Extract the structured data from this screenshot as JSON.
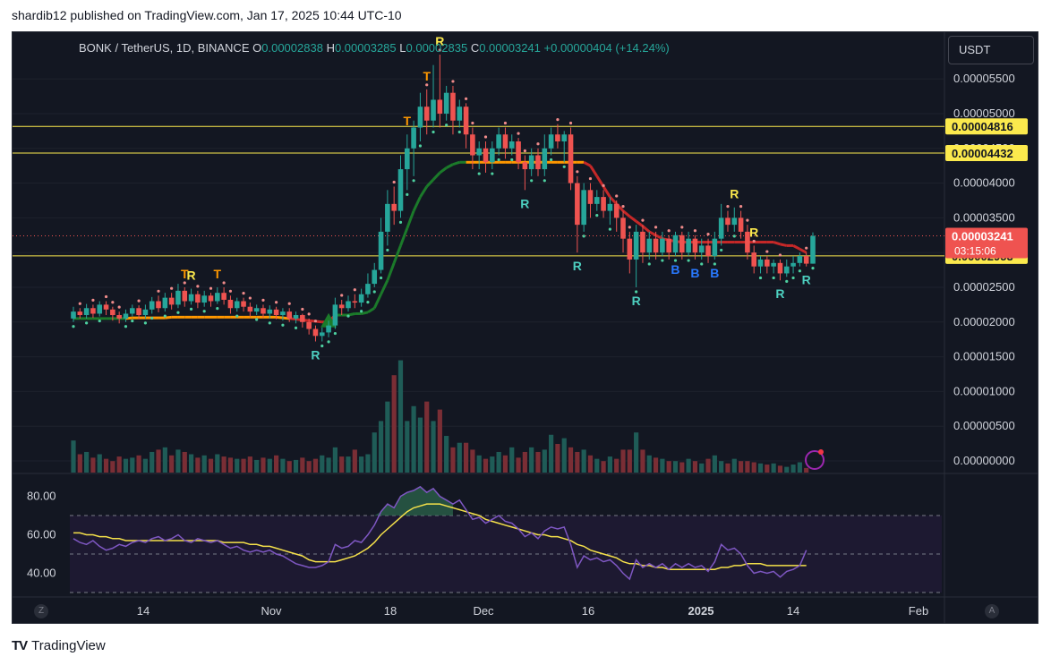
{
  "header": {
    "published": "shardib12 published on TradingView.com, Jan 17, 2025 10:44 UTC-10"
  },
  "ohlc": {
    "symbol": "BONK / TetherUS, 1D, BINANCE",
    "o_label": "O",
    "o": "0.00002838",
    "h_label": "H",
    "h": "0.00003285",
    "l_label": "L",
    "l": "0.00002835",
    "c_label": "C",
    "c": "0.00003241",
    "change": "+0.00000404 (+14.24%)"
  },
  "toolbar": {
    "currency": "USDT",
    "left_corner": "Z",
    "right_corner": "A"
  },
  "footer": {
    "brand": "TradingView",
    "brand_mark": "TV"
  },
  "colors": {
    "background": "#131722",
    "up": "#26a69a",
    "down": "#ef5350",
    "grid": "#1e222d",
    "level": "#fbe94d",
    "rsi": "#7e57c2",
    "rsi_ma": "#f5e14a",
    "trail_up": "#1b7a2a",
    "trail_down": "#c62828",
    "trail_flat": "#ff9800"
  },
  "chart_data": [
    {
      "type": "candlestick",
      "title": "BONK / TetherUS, 1D, BINANCE",
      "y_axis_ticks": [
        "0.00005500",
        "0.00005000",
        "0.00004500",
        "0.00004000",
        "0.00003500",
        "0.00003000",
        "0.00002500",
        "0.00002000",
        "0.00001500",
        "0.00001000",
        "0.00000500",
        "0.00000000"
      ],
      "x_axis_ticks": [
        "14",
        "Nov",
        "18",
        "Dec",
        "16",
        "2025",
        "14",
        "Feb"
      ],
      "ylim": [
        0.0,
        5.85e-05
      ],
      "horizontal_levels": [
        {
          "label": "0.00004816",
          "value": 4.816e-05
        },
        {
          "label": "0.00004432",
          "value": 4.432e-05
        },
        {
          "label": "0.00002953",
          "value": 2.953e-05
        }
      ],
      "last_price": {
        "label": "0.00003241",
        "countdown": "03:15:06",
        "value": 3.241e-05
      },
      "candles": [
        [
          2.05,
          2.15,
          2.22,
          2.0
        ],
        [
          2.15,
          2.1,
          2.2,
          2.05
        ],
        [
          2.1,
          2.2,
          2.26,
          2.05
        ],
        [
          2.2,
          2.12,
          2.25,
          2.06
        ],
        [
          2.12,
          2.25,
          2.3,
          2.08
        ],
        [
          2.25,
          2.18,
          2.3,
          2.1
        ],
        [
          2.18,
          2.1,
          2.22,
          2.02
        ],
        [
          2.1,
          2.05,
          2.15,
          1.98
        ],
        [
          2.05,
          2.12,
          2.18,
          2.0
        ],
        [
          2.12,
          2.2,
          2.25,
          2.08
        ],
        [
          2.2,
          2.1,
          2.24,
          2.04
        ],
        [
          2.1,
          2.18,
          2.25,
          2.05
        ],
        [
          2.18,
          2.3,
          2.36,
          2.12
        ],
        [
          2.3,
          2.2,
          2.38,
          2.14
        ],
        [
          2.2,
          2.35,
          2.42,
          2.15
        ],
        [
          2.35,
          2.25,
          2.42,
          2.18
        ],
        [
          2.25,
          2.45,
          2.55,
          2.2
        ],
        [
          2.45,
          2.3,
          2.5,
          2.22
        ],
        [
          2.3,
          2.4,
          2.48,
          2.25
        ],
        [
          2.4,
          2.28,
          2.45,
          2.2
        ],
        [
          2.28,
          2.38,
          2.45,
          2.22
        ],
        [
          2.38,
          2.3,
          2.42,
          2.22
        ],
        [
          2.3,
          2.42,
          2.5,
          2.26
        ],
        [
          2.42,
          2.32,
          2.5,
          2.25
        ],
        [
          2.32,
          2.2,
          2.38,
          2.12
        ],
        [
          2.2,
          2.3,
          2.35,
          2.15
        ],
        [
          2.3,
          2.22,
          2.35,
          2.15
        ],
        [
          2.22,
          2.15,
          2.28,
          2.08
        ],
        [
          2.15,
          2.2,
          2.25,
          2.1
        ],
        [
          2.2,
          2.12,
          2.25,
          2.06
        ],
        [
          2.12,
          2.18,
          2.24,
          2.05
        ],
        [
          2.18,
          2.1,
          2.22,
          2.04
        ],
        [
          2.1,
          2.15,
          2.2,
          2.02
        ],
        [
          2.15,
          2.05,
          2.2,
          2.0
        ],
        [
          2.05,
          2.1,
          2.15,
          1.98
        ],
        [
          2.1,
          2.0,
          2.12,
          1.92
        ],
        [
          2.0,
          1.9,
          2.05,
          1.82
        ],
        [
          1.9,
          1.8,
          1.95,
          1.72
        ],
        [
          1.8,
          1.85,
          1.92,
          1.72
        ],
        [
          1.85,
          1.95,
          2.02,
          1.78
        ],
        [
          1.95,
          2.25,
          2.35,
          1.9
        ],
        [
          2.25,
          2.2,
          2.32,
          2.1
        ],
        [
          2.2,
          2.3,
          2.38,
          2.15
        ],
        [
          2.3,
          2.28,
          2.4,
          2.2
        ],
        [
          2.28,
          2.4,
          2.48,
          2.22
        ],
        [
          2.4,
          2.55,
          2.7,
          2.35
        ],
        [
          2.55,
          2.75,
          2.85,
          2.5
        ],
        [
          2.75,
          3.3,
          3.5,
          2.7
        ],
        [
          3.3,
          3.7,
          3.9,
          3.1
        ],
        [
          3.7,
          3.6,
          3.95,
          3.4
        ],
        [
          3.6,
          4.2,
          4.4,
          3.5
        ],
        [
          4.2,
          4.5,
          4.7,
          3.9
        ],
        [
          4.5,
          4.8,
          4.9,
          4.1
        ],
        [
          4.8,
          5.1,
          5.3,
          4.6
        ],
        [
          5.1,
          4.9,
          5.35,
          4.7
        ],
        [
          4.9,
          5.2,
          5.7,
          4.8
        ],
        [
          5.2,
          5.0,
          5.85,
          4.8
        ],
        [
          5.0,
          5.3,
          5.4,
          4.9
        ],
        [
          5.3,
          4.9,
          5.4,
          4.7
        ],
        [
          4.9,
          5.1,
          5.2,
          4.8
        ],
        [
          5.1,
          4.7,
          5.15,
          4.5
        ],
        [
          4.7,
          4.4,
          4.8,
          4.2
        ],
        [
          4.4,
          4.5,
          4.6,
          4.2
        ],
        [
          4.5,
          4.3,
          4.6,
          4.15
        ],
        [
          4.3,
          4.5,
          4.6,
          4.2
        ],
        [
          4.5,
          4.7,
          4.8,
          4.4
        ],
        [
          4.7,
          4.5,
          4.8,
          4.35
        ],
        [
          4.5,
          4.6,
          4.7,
          4.4
        ],
        [
          4.6,
          4.3,
          4.65,
          4.2
        ],
        [
          4.3,
          4.2,
          4.4,
          3.9
        ],
        [
          4.2,
          4.4,
          4.5,
          4.1
        ],
        [
          4.4,
          4.2,
          4.5,
          4.1
        ],
        [
          4.2,
          4.5,
          4.7,
          4.1
        ],
        [
          4.5,
          4.7,
          4.8,
          4.4
        ],
        [
          4.7,
          4.6,
          4.85,
          4.5
        ],
        [
          4.6,
          4.7,
          4.75,
          4.3
        ],
        [
          4.7,
          4.0,
          4.8,
          3.9
        ],
        [
          4.0,
          3.4,
          4.1,
          3.0
        ],
        [
          3.4,
          3.9,
          4.0,
          3.3
        ],
        [
          3.9,
          3.7,
          4.0,
          3.5
        ],
        [
          3.7,
          3.8,
          3.9,
          3.6
        ],
        [
          3.8,
          3.6,
          3.9,
          3.5
        ],
        [
          3.6,
          3.7,
          3.8,
          3.4
        ],
        [
          3.7,
          3.5,
          3.75,
          3.3
        ],
        [
          3.5,
          3.2,
          3.6,
          3.0
        ],
        [
          3.2,
          2.9,
          3.3,
          2.7
        ],
        [
          2.9,
          3.3,
          3.4,
          2.5
        ],
        [
          3.3,
          3.0,
          3.4,
          2.85
        ],
        [
          3.0,
          3.2,
          3.3,
          2.9
        ],
        [
          3.2,
          3.0,
          3.3,
          2.9
        ],
        [
          3.0,
          3.2,
          3.3,
          2.95
        ],
        [
          3.2,
          3.0,
          3.25,
          2.9
        ],
        [
          3.0,
          3.25,
          3.3,
          2.95
        ],
        [
          3.25,
          3.0,
          3.3,
          2.9
        ],
        [
          3.0,
          3.2,
          3.3,
          2.95
        ],
        [
          3.2,
          3.0,
          3.25,
          2.9
        ],
        [
          3.0,
          3.1,
          3.2,
          2.9
        ],
        [
          3.1,
          2.95,
          3.2,
          2.85
        ],
        [
          2.95,
          3.2,
          3.3,
          2.9
        ],
        [
          3.2,
          3.5,
          3.7,
          3.1
        ],
        [
          3.5,
          3.4,
          3.6,
          3.3
        ],
        [
          3.4,
          3.5,
          3.65,
          3.3
        ],
        [
          3.5,
          3.3,
          3.6,
          3.2
        ],
        [
          3.3,
          3.0,
          3.4,
          2.9
        ],
        [
          3.0,
          2.8,
          3.1,
          2.7
        ],
        [
          2.8,
          2.9,
          2.95,
          2.7
        ],
        [
          2.9,
          2.8,
          2.95,
          2.7
        ],
        [
          2.8,
          2.85,
          2.9,
          2.7
        ],
        [
          2.85,
          2.7,
          2.9,
          2.6
        ],
        [
          2.7,
          2.8,
          2.9,
          2.65
        ],
        [
          2.8,
          2.85,
          2.95,
          2.7
        ],
        [
          2.85,
          2.95,
          3.0,
          2.8
        ],
        [
          2.95,
          2.84,
          3.0,
          2.8
        ],
        [
          2.84,
          3.24,
          3.29,
          2.84
        ]
      ],
      "trail_stop": [
        2.05,
        2.05,
        2.05,
        2.05,
        2.05,
        2.05,
        2.05,
        2.05,
        2.05,
        2.06,
        2.06,
        2.06,
        2.06,
        2.06,
        2.06,
        2.07,
        2.07,
        2.07,
        2.07,
        2.07,
        2.07,
        2.07,
        2.07,
        2.07,
        2.07,
        2.07,
        2.07,
        2.07,
        2.07,
        2.07,
        2.07,
        2.07,
        2.06,
        2.05,
        2.04,
        2.03,
        2.02,
        2.01,
        2.0,
        2.0,
        2.1,
        2.1,
        2.1,
        2.12,
        2.12,
        2.14,
        2.2,
        2.4,
        2.6,
        2.85,
        3.1,
        3.35,
        3.6,
        3.8,
        3.95,
        4.05,
        4.15,
        4.22,
        4.27,
        4.3,
        4.3,
        4.3,
        4.3,
        4.3,
        4.3,
        4.3,
        4.3,
        4.3,
        4.3,
        4.3,
        4.3,
        4.3,
        4.3,
        4.3,
        4.3,
        4.3,
        4.3,
        4.3,
        4.3,
        4.25,
        4.1,
        3.95,
        3.8,
        3.7,
        3.6,
        3.52,
        3.45,
        3.38,
        3.3,
        3.25,
        3.2,
        3.18,
        3.16,
        3.15,
        3.15,
        3.15,
        3.15,
        3.15,
        3.15,
        3.15,
        3.15,
        3.15,
        3.15,
        3.15,
        3.15,
        3.15,
        3.15,
        3.15,
        3.12,
        3.1,
        3.1,
        3.05,
        3.0
      ],
      "labels": [
        {
          "text": "T",
          "i": 17,
          "pos": "above",
          "color": "#ff9800"
        },
        {
          "text": "R",
          "i": 18,
          "pos": "above",
          "color": "#fbe94d"
        },
        {
          "text": "T",
          "i": 22,
          "pos": "above",
          "color": "#ff9800"
        },
        {
          "text": "R",
          "i": 37,
          "pos": "below",
          "color": "#4dd0c0"
        },
        {
          "text": "T",
          "i": 51,
          "pos": "above",
          "color": "#ff9800"
        },
        {
          "text": "T",
          "i": 54,
          "pos": "above",
          "color": "#ff9800"
        },
        {
          "text": "R",
          "i": 56,
          "pos": "above",
          "color": "#fbe94d"
        },
        {
          "text": "R",
          "i": 69,
          "pos": "below",
          "color": "#4dd0c0"
        },
        {
          "text": "R",
          "i": 77,
          "pos": "below",
          "color": "#4dd0c0"
        },
        {
          "text": "R",
          "i": 86,
          "pos": "below",
          "color": "#4dd0c0"
        },
        {
          "text": "B",
          "i": 92,
          "pos": "below",
          "color": "#2979ff"
        },
        {
          "text": "B",
          "i": 95,
          "pos": "below",
          "color": "#2979ff"
        },
        {
          "text": "B",
          "i": 98,
          "pos": "below",
          "color": "#2979ff"
        },
        {
          "text": "R",
          "i": 101,
          "pos": "above",
          "color": "#fbe94d"
        },
        {
          "text": "R",
          "i": 104,
          "pos": "above",
          "color": "#fbe94d"
        },
        {
          "text": "R",
          "i": 108,
          "pos": "below",
          "color": "#4dd0c0"
        },
        {
          "text": "R",
          "i": 112,
          "pos": "below",
          "color": "#4dd0c0"
        }
      ],
      "volume": [
        0.28,
        0.16,
        0.18,
        0.13,
        0.16,
        0.12,
        0.1,
        0.14,
        0.12,
        0.13,
        0.15,
        0.12,
        0.18,
        0.2,
        0.22,
        0.15,
        0.2,
        0.18,
        0.16,
        0.13,
        0.15,
        0.12,
        0.16,
        0.14,
        0.13,
        0.12,
        0.12,
        0.14,
        0.11,
        0.13,
        0.12,
        0.15,
        0.12,
        0.1,
        0.11,
        0.13,
        0.1,
        0.12,
        0.15,
        0.13,
        0.22,
        0.14,
        0.14,
        0.2,
        0.14,
        0.16,
        0.35,
        0.45,
        0.62,
        0.85,
        0.98,
        0.45,
        0.58,
        0.48,
        0.62,
        0.45,
        0.55,
        0.32,
        0.22,
        0.26,
        0.26,
        0.2,
        0.15,
        0.12,
        0.14,
        0.18,
        0.15,
        0.22,
        0.13,
        0.18,
        0.22,
        0.18,
        0.2,
        0.33,
        0.25,
        0.3,
        0.22,
        0.18,
        0.2,
        0.15,
        0.12,
        0.1,
        0.14,
        0.12,
        0.2,
        0.2,
        0.35,
        0.2,
        0.15,
        0.13,
        0.12,
        0.1,
        0.1,
        0.09,
        0.12,
        0.1,
        0.08,
        0.12,
        0.15,
        0.1,
        0.08,
        0.12,
        0.1,
        0.1,
        0.09,
        0.08,
        0.07,
        0.08,
        0.06,
        0.05,
        0.07,
        0.09,
        0.04
      ]
    },
    {
      "type": "line",
      "name": "RSI",
      "y_axis_ticks": [
        "80.00",
        "60.00",
        "40.00"
      ],
      "ylim": [
        30,
        90
      ],
      "bands": [
        70,
        50,
        30
      ],
      "rsi": [
        58,
        56,
        55,
        57,
        54,
        52,
        53,
        55,
        54,
        56,
        57,
        56,
        58,
        59,
        57,
        58,
        60,
        57,
        56,
        58,
        57,
        56,
        57,
        55,
        53,
        54,
        52,
        51,
        52,
        51,
        52,
        50,
        49,
        47,
        45,
        44,
        43,
        43,
        44,
        46,
        55,
        53,
        54,
        57,
        56,
        60,
        65,
        72,
        76,
        74,
        80,
        82,
        83,
        85,
        82,
        84,
        80,
        78,
        76,
        78,
        73,
        68,
        69,
        66,
        68,
        70,
        67,
        66,
        63,
        59,
        61,
        58,
        62,
        64,
        63,
        64,
        55,
        43,
        49,
        47,
        48,
        46,
        47,
        44,
        40,
        37,
        47,
        43,
        45,
        43,
        45,
        42,
        45,
        43,
        45,
        43,
        44,
        41,
        46,
        55,
        52,
        53,
        50,
        44,
        40,
        41,
        40,
        41,
        38,
        41,
        42,
        44,
        52
      ],
      "rsi_ma": [
        61,
        61,
        60,
        60,
        59,
        59,
        58,
        58,
        57,
        57,
        57,
        57,
        57,
        57,
        57,
        57,
        57,
        57,
        57,
        57,
        57,
        57,
        57,
        56,
        56,
        56,
        56,
        55,
        55,
        54,
        54,
        53,
        52,
        51,
        50,
        49,
        47,
        46,
        46,
        46,
        46,
        47,
        48,
        49,
        51,
        53,
        56,
        60,
        63,
        66,
        69,
        72,
        74,
        75,
        76,
        76,
        76,
        75,
        74,
        73,
        72,
        71,
        70,
        68,
        67,
        66,
        65,
        64,
        63,
        62,
        61,
        60,
        60,
        59,
        59,
        58,
        57,
        55,
        54,
        52,
        51,
        50,
        49,
        48,
        46,
        45,
        45,
        44,
        44,
        43,
        43,
        42,
        42,
        42,
        42,
        42,
        42,
        42,
        42,
        43,
        43,
        44,
        44,
        45,
        45,
        45,
        44,
        44,
        44,
        44,
        44,
        44,
        44
      ]
    }
  ]
}
